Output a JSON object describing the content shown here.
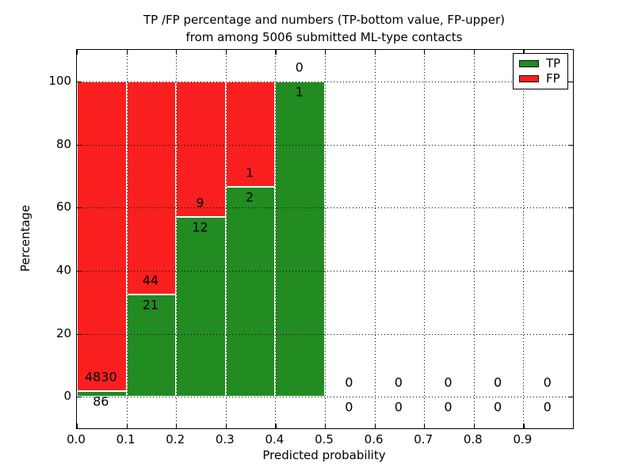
{
  "figure": {
    "title_line1": "TP /FP percentage and numbers (TP-bottom value, FP-upper)",
    "title_line2": "from among 5006 submitted ML-type contacts",
    "background_color": "#ffffff"
  },
  "chart_data": {
    "type": "bar",
    "stacked": true,
    "title": "TP /FP percentage and numbers (TP-bottom value, FP-upper)\nfrom among 5006 submitted ML-type contacts",
    "xlabel": "Predicted probability",
    "ylabel": "Percentage",
    "xlim": [
      0.0,
      1.0
    ],
    "ylim": [
      -10,
      110
    ],
    "xticks": [
      0.0,
      0.1,
      0.2,
      0.3,
      0.4,
      0.5,
      0.6,
      0.7,
      0.8,
      0.9
    ],
    "yticks": [
      0,
      20,
      40,
      60,
      80,
      100
    ],
    "grid": true,
    "grid_style": "dotted",
    "bar_edge_color": "#ffffff",
    "total_submitted_contacts": 5006,
    "bins": [
      {
        "range": [
          0.0,
          0.1
        ],
        "tp": 86,
        "fp": 4830,
        "tp_pct": 1.75,
        "fp_pct": 98.25
      },
      {
        "range": [
          0.1,
          0.2
        ],
        "tp": 21,
        "fp": 44,
        "tp_pct": 32.31,
        "fp_pct": 67.69
      },
      {
        "range": [
          0.2,
          0.3
        ],
        "tp": 12,
        "fp": 9,
        "tp_pct": 57.14,
        "fp_pct": 42.86
      },
      {
        "range": [
          0.3,
          0.4
        ],
        "tp": 2,
        "fp": 1,
        "tp_pct": 66.67,
        "fp_pct": 33.33
      },
      {
        "range": [
          0.4,
          0.5
        ],
        "tp": 1,
        "fp": 0,
        "tp_pct": 100.0,
        "fp_pct": 0.0
      },
      {
        "range": [
          0.5,
          0.6
        ],
        "tp": 0,
        "fp": 0,
        "tp_pct": 0.0,
        "fp_pct": 0.0
      },
      {
        "range": [
          0.6,
          0.7
        ],
        "tp": 0,
        "fp": 0,
        "tp_pct": 0.0,
        "fp_pct": 0.0
      },
      {
        "range": [
          0.7,
          0.8
        ],
        "tp": 0,
        "fp": 0,
        "tp_pct": 0.0,
        "fp_pct": 0.0
      },
      {
        "range": [
          0.8,
          0.9
        ],
        "tp": 0,
        "fp": 0,
        "tp_pct": 0.0,
        "fp_pct": 0.0
      },
      {
        "range": [
          0.9,
          1.0
        ],
        "tp": 0,
        "fp": 0,
        "tp_pct": 0.0,
        "fp_pct": 0.0
      }
    ],
    "series": [
      {
        "name": "TP",
        "color": "#228b22"
      },
      {
        "name": "FP",
        "color": "#fa1f1f"
      }
    ],
    "legend": {
      "position": "upper right",
      "entries": [
        {
          "label": "TP",
          "color": "#228b22"
        },
        {
          "label": "FP",
          "color": "#fa1f1f"
        }
      ]
    }
  },
  "colors": {
    "tp_green": "#228b22",
    "fp_red": "#fa1f1f",
    "frame": "#000000",
    "text": "#000000",
    "background": "#ffffff"
  }
}
